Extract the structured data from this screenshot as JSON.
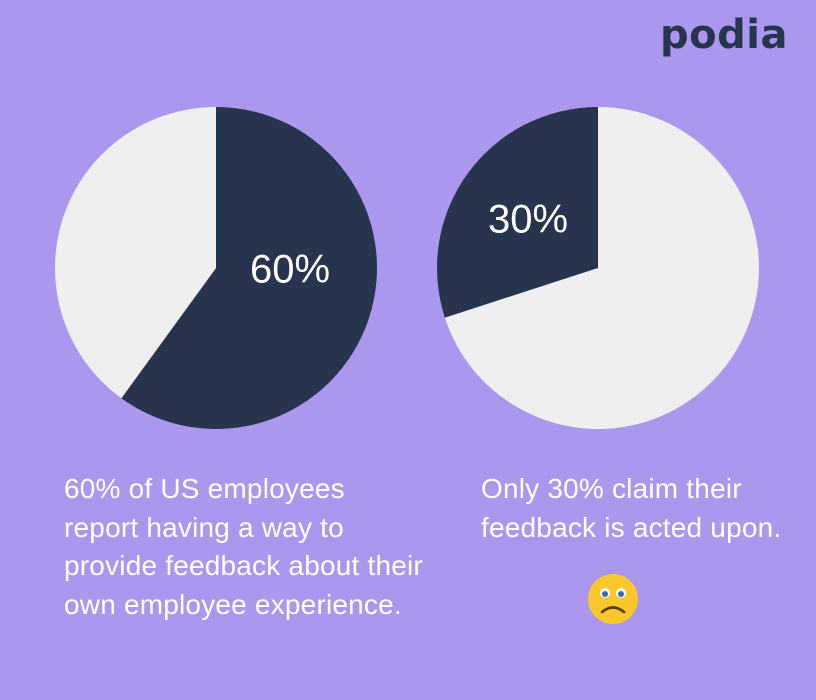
{
  "brand": {
    "logo_text": "podia"
  },
  "colors": {
    "background": "#ab97ee",
    "dark_slice": "#26354d",
    "light_slice": "#efefef",
    "text": "#ffffff",
    "emoji": "#fcc72c"
  },
  "chart_data": [
    {
      "type": "pie",
      "slices": [
        {
          "label": "60%",
          "value": 60,
          "color": "#26354d"
        },
        {
          "label": "",
          "value": 40,
          "color": "#efefef"
        }
      ],
      "caption": "60% of US employees report having a way to provide feedback about their own employee experience."
    },
    {
      "type": "pie",
      "slices": [
        {
          "label": "30%",
          "value": 30,
          "color": "#26354d"
        },
        {
          "label": "",
          "value": 70,
          "color": "#efefef"
        }
      ],
      "caption": "Only 30% claim their feedback is acted upon."
    }
  ],
  "emoji": {
    "icon": "sad-face-icon"
  }
}
